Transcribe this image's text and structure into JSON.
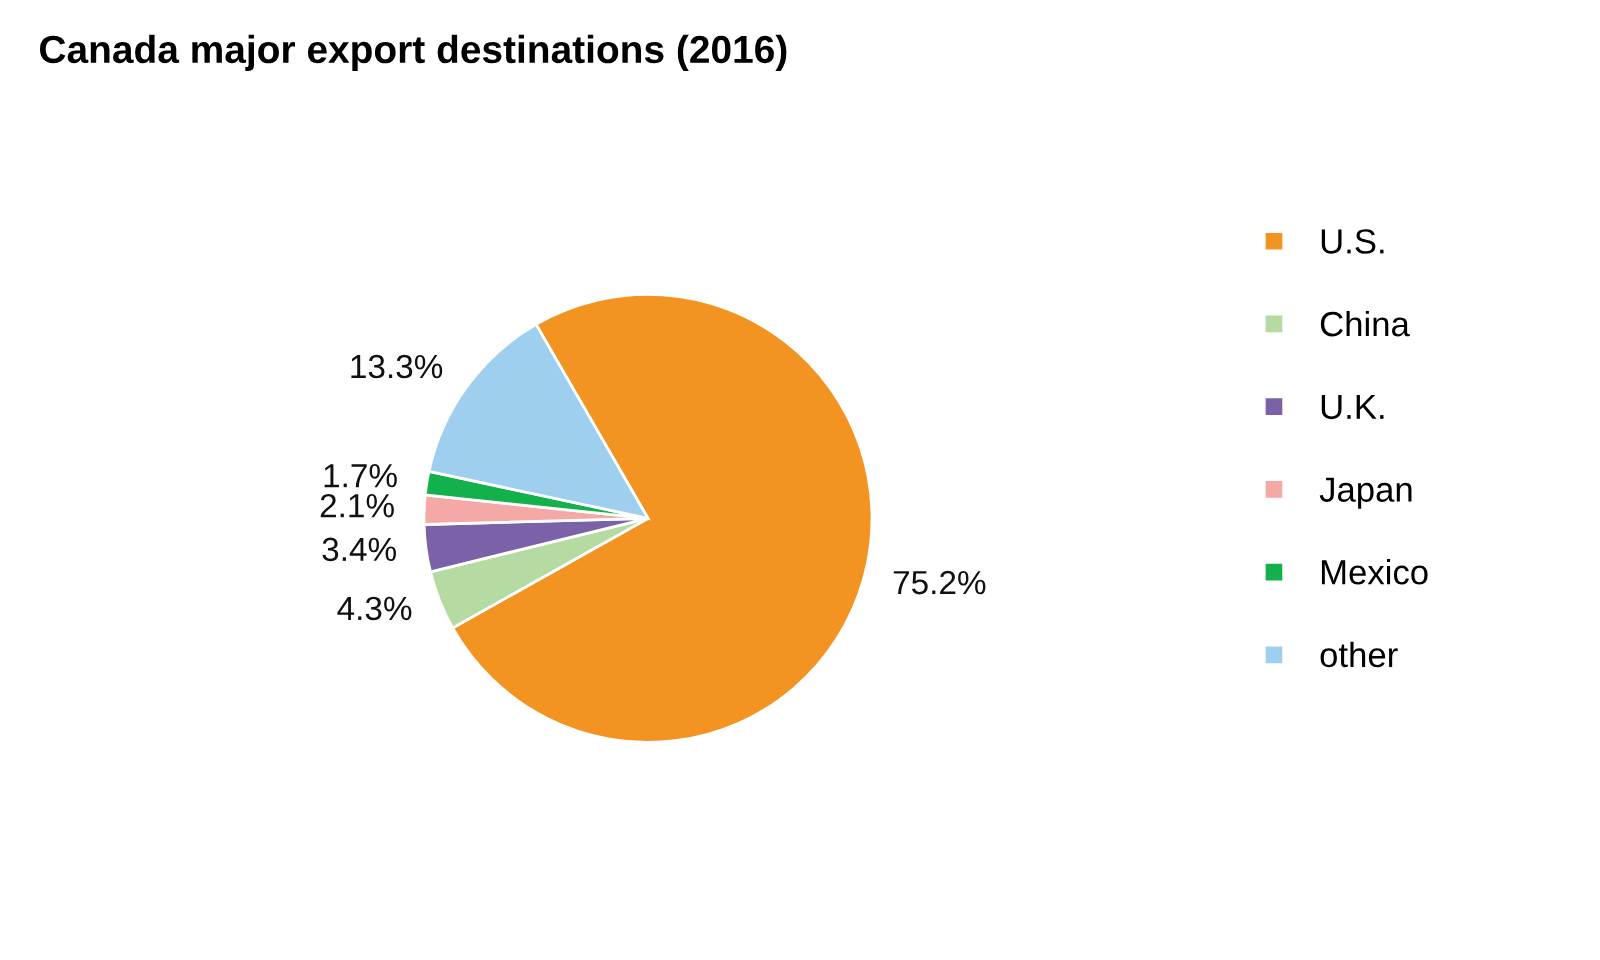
{
  "chart_data": {
    "type": "pie",
    "title": "Canada major export destinations (2016)",
    "categories": [
      "U.S.",
      "China",
      "U.K.",
      "Japan",
      "Mexico",
      "other"
    ],
    "values": [
      75.2,
      4.3,
      3.4,
      2.1,
      1.7,
      13.3
    ],
    "colors": [
      "#f39322",
      "#b5dba3",
      "#7b62a8",
      "#f4a9a6",
      "#13b14b",
      "#9ecfee"
    ],
    "value_labels": [
      "75.2%",
      "4.3%",
      "3.4%",
      "2.1%",
      "1.7%",
      "13.3%"
    ],
    "legend": "right"
  }
}
